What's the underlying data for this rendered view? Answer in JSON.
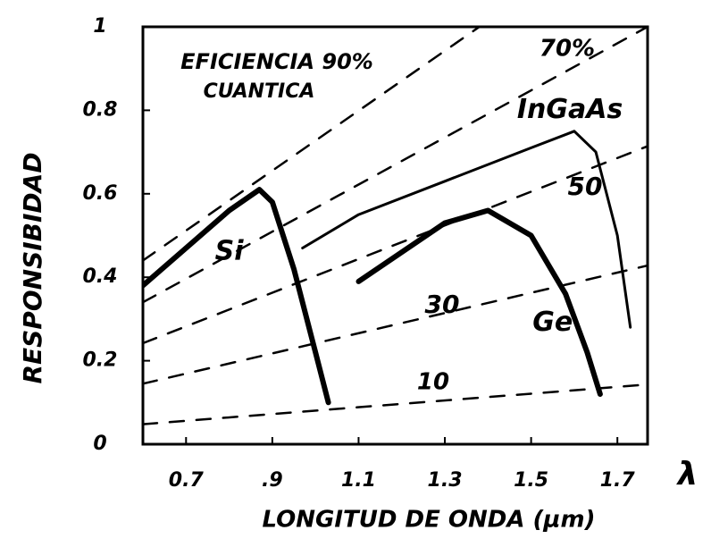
{
  "chart_data": {
    "type": "line",
    "title": null,
    "x_label": "LONGITUD DE ONDA (μm)",
    "x_symbol": "λ",
    "y_label": "RESPONSIBIDAD",
    "xlim": [
      0.6,
      1.77
    ],
    "ylim": [
      0,
      1
    ],
    "xticks": [
      0.7,
      {
        "value": 0.9,
        "label": ".9"
      },
      1.1,
      1.3,
      1.5,
      1.7
    ],
    "yticks": [
      0,
      0.2,
      0.4,
      0.6,
      0.8,
      1
    ],
    "grid": false,
    "series": [
      {
        "name": "Si",
        "color": "#000000",
        "style": "thick",
        "x": [
          0.6,
          0.7,
          0.8,
          0.87,
          0.9,
          0.95,
          1.0,
          1.03
        ],
        "values": [
          0.38,
          0.47,
          0.56,
          0.61,
          0.58,
          0.42,
          0.22,
          0.1
        ]
      },
      {
        "name": "InGaAs",
        "color": "#000000",
        "style": "thin",
        "x": [
          0.97,
          1.1,
          1.3,
          1.5,
          1.6,
          1.65,
          1.7,
          1.73
        ],
        "values": [
          0.47,
          0.55,
          0.63,
          0.71,
          0.75,
          0.7,
          0.5,
          0.28
        ]
      },
      {
        "name": "Ge",
        "color": "#000000",
        "style": "thick",
        "x": [
          1.1,
          1.3,
          1.4,
          1.5,
          1.58,
          1.63,
          1.66
        ],
        "values": [
          0.39,
          0.53,
          0.56,
          0.5,
          0.36,
          0.22,
          0.12
        ]
      },
      {
        "color": "#000000",
        "style": "dashed",
        "x": [
          0.6,
          1.77
        ],
        "values": [
          0.048,
          0.143
        ]
      },
      {
        "color": "#000000",
        "style": "dashed",
        "x": [
          0.6,
          1.77
        ],
        "values": [
          0.145,
          0.428
        ]
      },
      {
        "color": "#000000",
        "style": "dashed",
        "x": [
          0.6,
          1.77
        ],
        "values": [
          0.242,
          0.714
        ]
      },
      {
        "color": "#000000",
        "style": "dashed",
        "x": [
          0.6,
          1.77
        ],
        "values": [
          0.34,
          1.0
        ]
      },
      {
        "color": "#000000",
        "style": "dashed",
        "x": [
          0.6,
          1.38
        ],
        "values": [
          0.44,
          1.0
        ]
      }
    ],
    "annotations": [
      "EFICIENCIA 90%",
      "CUANTICA",
      "70%",
      "50",
      "30",
      "10"
    ]
  }
}
